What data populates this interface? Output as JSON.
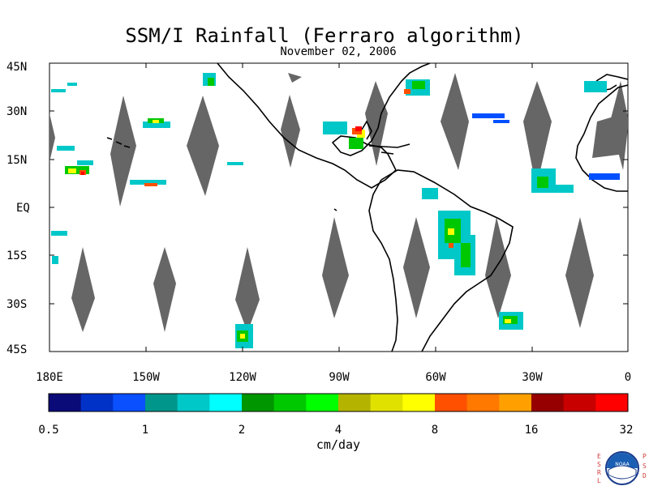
{
  "title": "SSM/I Rainfall (Ferraro algorithm)",
  "subtitle": "November 02, 2006",
  "lat_labels": [
    "45N",
    "30N",
    "15N",
    "EQ",
    "15S",
    "30S",
    "45S"
  ],
  "lon_labels": [
    "180E",
    "150W",
    "120W",
    "90W",
    "60W",
    "30W",
    "0"
  ],
  "colorbar": {
    "units": "cm/day",
    "tick_labels": [
      "0.5",
      "1",
      "2",
      "4",
      "8",
      "16",
      "32"
    ],
    "colors": [
      "#0a0a78",
      "#0032c8",
      "#0a50ff",
      "#00968c",
      "#00c8c8",
      "#00ffff",
      "#009600",
      "#00c800",
      "#00ff00",
      "#b4b400",
      "#e1e100",
      "#ffff00",
      "#ff5000",
      "#ff7800",
      "#ffa000",
      "#960000",
      "#c80000",
      "#ff0000"
    ]
  },
  "land_color": "#000000",
  "missing_color": "#666666",
  "logo": {
    "left_letters": [
      "E",
      "S",
      "R",
      "L"
    ],
    "right_letters": [
      "P",
      "S",
      "D"
    ],
    "center_text": "NOAA"
  }
}
